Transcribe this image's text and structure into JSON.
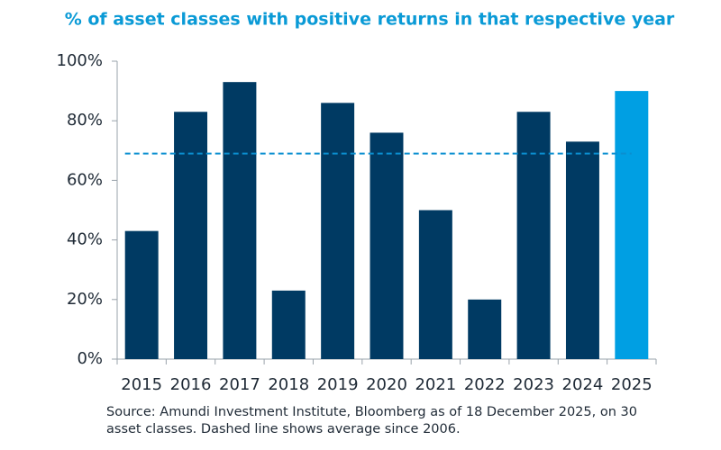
{
  "chart_data": {
    "type": "bar",
    "title": "% of asset classes with positive returns in that respective year",
    "categories": [
      "2015",
      "2016",
      "2017",
      "2018",
      "2019",
      "2020",
      "2021",
      "2022",
      "2023",
      "2024",
      "2025"
    ],
    "values": [
      43,
      83,
      93,
      23,
      86,
      76,
      50,
      20,
      83,
      73,
      90
    ],
    "colors": [
      "#003a63",
      "#003a63",
      "#003a63",
      "#003a63",
      "#003a63",
      "#003a63",
      "#003a63",
      "#003a63",
      "#003a63",
      "#003a63",
      "#009fe3"
    ],
    "ylim": [
      0,
      100
    ],
    "yticks": [
      {
        "value": 0,
        "label": "0%"
      },
      {
        "value": 20,
        "label": "20%"
      },
      {
        "value": 40,
        "label": "40%"
      },
      {
        "value": 60,
        "label": "60%"
      },
      {
        "value": 80,
        "label": "80%"
      },
      {
        "value": 100,
        "label": "100%"
      }
    ],
    "reference_line": {
      "value": 69,
      "color": "#0a8fd0"
    },
    "note": "Source: Amundi Investment Institute, Bloomberg as of 18 December 2025, on 30 asset classes. Dashed line shows average since 2006."
  }
}
